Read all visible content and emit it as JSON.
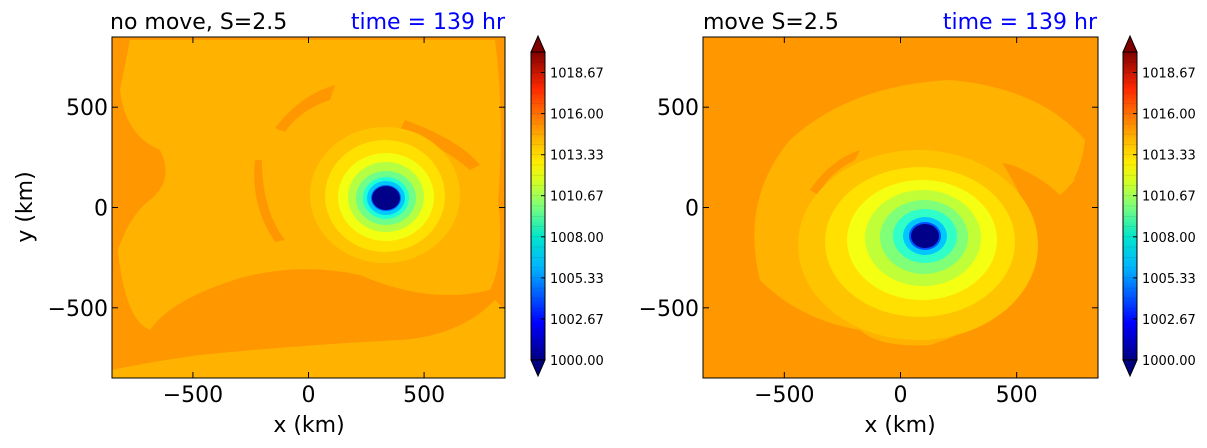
{
  "chart_data": [
    {
      "type": "heatmap",
      "title": "no move, S=2.5",
      "time_label": "time = 139 hr",
      "xlabel": "x (km)",
      "ylabel": "y (km)",
      "xlim": [
        -850,
        850
      ],
      "ylim": [
        -850,
        850
      ],
      "xticks": [
        -500,
        0,
        500
      ],
      "yticks": [
        -500,
        0,
        500
      ],
      "xtick_labels": [
        "−500",
        "0",
        "500"
      ],
      "ytick_labels": [
        "−500",
        "0",
        "500"
      ],
      "cyclone_center": [
        340,
        45
      ],
      "colorbar": {
        "min": 1000.0,
        "max": 1020.0,
        "ticks": [
          1000.0,
          1002.67,
          1005.33,
          1008.0,
          1010.67,
          1013.33,
          1016.0,
          1018.67
        ],
        "tick_labels": [
          "1000.00",
          "1002.67",
          "1005.33",
          "1008.00",
          "1010.67",
          "1013.33",
          "1016.00",
          "1018.67"
        ],
        "extend": "both"
      }
    },
    {
      "type": "heatmap",
      "title": "move S=2.5",
      "time_label": "time = 139 hr",
      "xlabel": "x (km)",
      "ylabel": "",
      "xlim": [
        -850,
        850
      ],
      "ylim": [
        -850,
        850
      ],
      "xticks": [
        -500,
        0,
        500
      ],
      "yticks": [
        -500,
        0,
        500
      ],
      "xtick_labels": [
        "−500",
        "0",
        "500"
      ],
      "ytick_labels": [
        "−500",
        "0",
        "500"
      ],
      "cyclone_center": [
        110,
        -140
      ],
      "colorbar": {
        "min": 1000.0,
        "max": 1020.0,
        "ticks": [
          1000.0,
          1002.67,
          1005.33,
          1008.0,
          1010.67,
          1013.33,
          1016.0,
          1018.67
        ],
        "tick_labels": [
          "1000.00",
          "1002.67",
          "1005.33",
          "1008.00",
          "1010.67",
          "1013.33",
          "1016.00",
          "1018.67"
        ],
        "extend": "both"
      }
    }
  ],
  "colors": {
    "title": "#000000",
    "time_label": "#0000ff",
    "background_field": "#ff9800",
    "ambient_band": "#ffb300",
    "inner_ring": "#ffd000",
    "eye": "#000088"
  }
}
